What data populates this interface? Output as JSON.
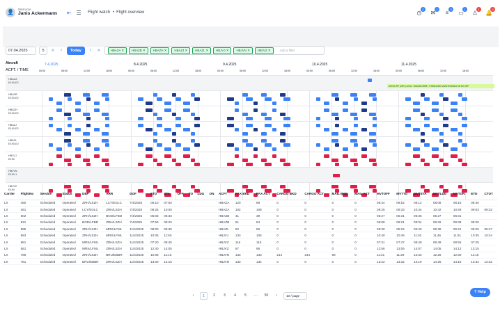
{
  "user": {
    "welcome": "Welcome",
    "name": "Janis Ackermann"
  },
  "breadcrumb": [
    "Flight watch",
    "Flight overview"
  ],
  "toolbar": {
    "date": "07.04.2025",
    "days": "5",
    "today": "Today",
    "placeholder": "Add a filter"
  },
  "filters": [
    "HBAZA",
    "HBAZB",
    "HBAZH",
    "HBAZJ",
    "HBAZL",
    "HBJVJ",
    "HBJVN",
    "HBJVZ"
  ],
  "notifications": [
    {
      "icon": "clock-icon",
      "count": "2"
    },
    {
      "icon": "mail-icon",
      "count": "1"
    },
    {
      "icon": "list-icon",
      "count": "3"
    },
    {
      "icon": "calendar-icon",
      "count": "1"
    },
    {
      "icon": "warning-icon",
      "count": "1"
    },
    {
      "icon": "bell-icon",
      "count": "3"
    }
  ],
  "gantt": {
    "aircraft_label": "Aircraft",
    "acft_time_label": "ACFT. / TIME",
    "dates": [
      "7.4.2025",
      "8.4.2025",
      "9.4.2025",
      "10.4.2025",
      "11.4.2025"
    ],
    "times": [
      "00:00",
      "06:00",
      "12:00",
      "18:00"
    ],
    "rows": [
      {
        "reg": "HBAZA",
        "type": "E190-E2"
      },
      {
        "reg": "HBAZB",
        "type": "E190-E2"
      },
      {
        "reg": "HBAZH",
        "type": "E190-E2"
      },
      {
        "reg": "HBAZJ",
        "type": "E190-E2"
      },
      {
        "reg": "HBAZL",
        "type": "E190-E2"
      },
      {
        "reg": "HBJVJ",
        "type": "E190"
      },
      {
        "reg": "HBJVN",
        "type": "E190-1"
      },
      {
        "reg": "HBJVZ",
        "type": "E190"
      }
    ],
    "maintenance": "AHOS WP (ZRH) 424JL / BOAZB MRB / STANDARD MAINTENANCE AHOS WP"
  },
  "table": {
    "headers": [
      "Carrier",
      "FlightNo",
      "Service",
      "Status",
      "DEP",
      "ARR",
      "DOF",
      "STD",
      "STA",
      "OFF",
      "TO",
      "LDG",
      "ON",
      "ACFT",
      "PAX BKD",
      "PAX ACT",
      "CARGO BKD",
      "CARGO ACT",
      "MAIL BKD",
      "MAIL ACT",
      "MVTOFF",
      "MVTTO",
      "MVTETA",
      "MVTLDG",
      "MVTON",
      "ETD",
      "CTOT"
    ],
    "rows": [
      [
        "LX",
        "450",
        "Scheduled",
        "Operated",
        "ZRH/LSZH",
        "LCY/EGLC",
        "7/4/2025",
        "06:10",
        "07:50",
        "",
        "",
        "",
        "",
        "HBAZA",
        "120",
        "89",
        "0",
        "0",
        "0",
        "0",
        "06:44",
        "06:52",
        "08:12",
        "08:08",
        "08:15",
        "06:40",
        ""
      ],
      [
        "LX",
        "461",
        "Scheduled",
        "Operated",
        "LCY/EGLC",
        "ZRH/LSZH",
        "7/4/2025",
        "08:25",
        "10:00",
        "",
        "",
        "",
        "",
        "HBAZA",
        "102",
        "108",
        "0",
        "0",
        "0",
        "0",
        "09:25",
        "09:33",
        "10:44",
        "10:42",
        "10:49",
        "09:03",
        "09:32"
      ],
      [
        "LX",
        "502",
        "Scheduled",
        "Operated",
        "ZRH/LSZH",
        "BOD/LFBD",
        "7/4/2025",
        "05:03",
        "06:33",
        "",
        "",
        "",
        "",
        "HBAZB",
        "41",
        "39",
        "0",
        "0",
        "0",
        "0",
        "05:27",
        "05:31",
        "06:36",
        "06:27",
        "06:31",
        "",
        ""
      ],
      [
        "LX",
        "531",
        "Scheduled",
        "Operated",
        "BOD/LFBD",
        "ZRH/LSZH",
        "7/4/2025",
        "07:53",
        "09:20",
        "",
        "",
        "",
        "",
        "HBAZB",
        "61",
        "84",
        "0",
        "0",
        "0",
        "0",
        "08:08",
        "08:21",
        "09:34",
        "09:32",
        "09:38",
        "08:25",
        ""
      ],
      [
        "LX",
        "585",
        "Scheduled",
        "Operated",
        "ZRH/LSZH",
        "MRS/LFML",
        "11/4/2025",
        "08:00",
        "06:35",
        "",
        "",
        "",
        "",
        "HBAZL",
        "62",
        "56",
        "0",
        "0",
        "0",
        "0",
        "05:30",
        "05:15",
        "06:40",
        "06:38",
        "06:41",
        "05:25",
        "05:47"
      ],
      [
        "LX",
        "583",
        "Scheduled",
        "Operated",
        "ZRH/LSZH",
        "MRS/LFML",
        "11/4/2025",
        "10:05",
        "11:50",
        "",
        "",
        "",
        "",
        "HBJVJ",
        "133",
        "106",
        "0",
        "0",
        "0",
        "0",
        "10:40",
        "10:45",
        "11:40",
        "11:46",
        "11:51",
        "10:35",
        "10:44"
      ],
      [
        "LX",
        "581",
        "Scheduled",
        "Operated",
        "MRS/LFML",
        "ZRH/LSZH",
        "11/4/2025",
        "07:20",
        "08:45",
        "",
        "",
        "",
        "",
        "HBJVZ",
        "116",
        "116",
        "0",
        "0",
        "0",
        "0",
        "07:31",
        "07:47",
        "08:49",
        "08:49",
        "08:55",
        "07:25",
        ""
      ],
      [
        "LX",
        "581",
        "Scheduled",
        "Operated",
        "MRS/LFML",
        "ZRH/LSZH",
        "11/4/2025",
        "12:40",
        "14:05",
        "",
        "",
        "",
        "",
        "HBJVZ",
        "67",
        "96",
        "0",
        "0",
        "0",
        "0",
        "12:56",
        "13:05",
        "14:07",
        "14:05",
        "14:12",
        "13:15",
        ""
      ],
      [
        "LX",
        "786",
        "Scheduled",
        "Operated",
        "ZRH/LSZH",
        "BRU/EBBR",
        "11/4/2025",
        "10:05",
        "11:15",
        "",
        "",
        "",
        "",
        "HBJVN",
        "133",
        "133",
        "214",
        "244",
        "89",
        "0",
        "11:21",
        "11:29",
        "12:33",
        "12:25",
        "12:30",
        "11:15",
        ""
      ],
      [
        "LX",
        "781",
        "Scheduled",
        "Operated",
        "BRU/EBBR",
        "ZRH/LSZH",
        "11/4/2025",
        "13:00",
        "14:15",
        "",
        "",
        "",
        "",
        "HBJVN",
        "133",
        "134",
        "0",
        "0",
        "0",
        "0",
        "13:22",
        "13:32",
        "14:19",
        "14:26",
        "14:15",
        "13:32",
        "13:32"
      ]
    ]
  },
  "pager": {
    "pages": [
      "1",
      "2",
      "3",
      "4",
      "5",
      "···",
      "50"
    ],
    "page_size": "10 / page"
  },
  "help": "Help",
  "colors": {
    "accent": "#3b82f6",
    "bar_blue": "#3b82f6",
    "bar_navy": "#1e3a8a",
    "bar_pink": "#e11d48",
    "maintenance": "#d9f99d"
  }
}
